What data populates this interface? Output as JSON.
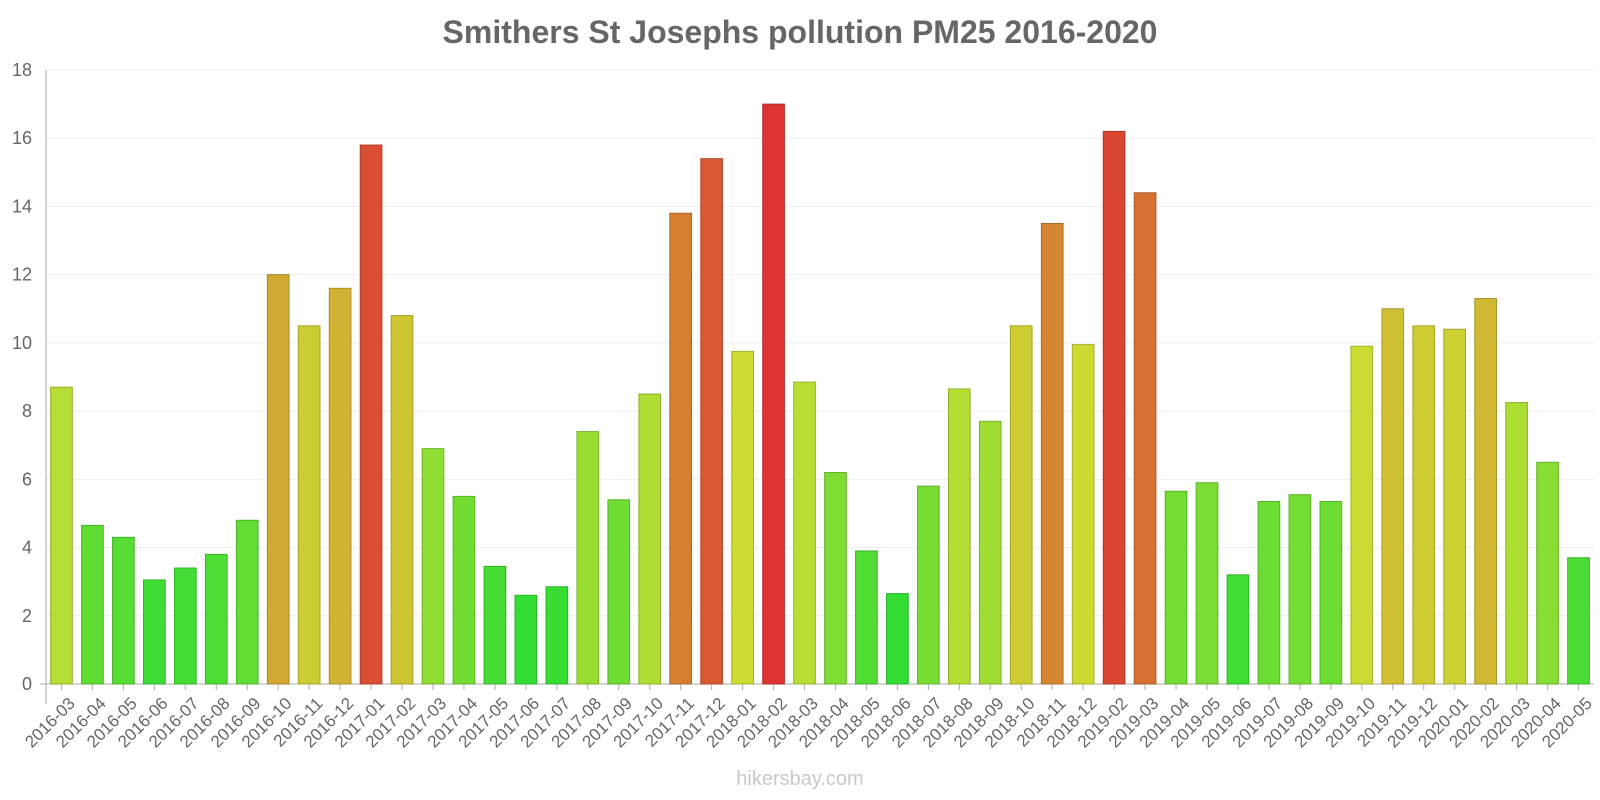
{
  "chart_data": {
    "type": "bar",
    "title": "Smithers St Josephs pollution PM25 2016-2020",
    "xlabel": "",
    "ylabel": "",
    "ylim": [
      0,
      18
    ],
    "yticks": [
      0,
      2,
      4,
      6,
      8,
      10,
      12,
      14,
      16,
      18
    ],
    "grid": true,
    "legend": "none",
    "categories": [
      "2016-03",
      "2016-04",
      "2016-05",
      "2016-06",
      "2016-07",
      "2016-08",
      "2016-09",
      "2016-10",
      "2016-11",
      "2016-12",
      "2017-01",
      "2017-02",
      "2017-03",
      "2017-04",
      "2017-05",
      "2017-06",
      "2017-07",
      "2017-08",
      "2017-09",
      "2017-10",
      "2017-11",
      "2017-12",
      "2018-01",
      "2018-02",
      "2018-03",
      "2018-04",
      "2018-05",
      "2018-06",
      "2018-07",
      "2018-08",
      "2018-09",
      "2018-10",
      "2018-11",
      "2018-12",
      "2019-02",
      "2019-03",
      "2019-04",
      "2019-05",
      "2019-06",
      "2019-07",
      "2019-08",
      "2019-09",
      "2019-10",
      "2019-11",
      "2019-12",
      "2020-01",
      "2020-02",
      "2020-03",
      "2020-04",
      "2020-05"
    ],
    "values": [
      8.7,
      4.65,
      4.3,
      3.05,
      3.4,
      3.8,
      4.8,
      12,
      10.5,
      11.6,
      15.8,
      10.8,
      6.9,
      5.5,
      3.45,
      2.6,
      2.85,
      7.4,
      5.4,
      8.5,
      13.8,
      15.4,
      9.75,
      17,
      8.85,
      6.2,
      3.9,
      2.65,
      5.8,
      8.65,
      7.7,
      10.5,
      13.5,
      9.95,
      16.2,
      14.4,
      5.65,
      5.9,
      3.2,
      5.35,
      5.55,
      5.35,
      9.9,
      11,
      10.5,
      10.4,
      11.3,
      8.25,
      6.5,
      3.7
    ],
    "color_scale": {
      "low": "#33dd33",
      "mid": "#ccdd33",
      "high": "#dd3333"
    }
  },
  "watermark": "hikersbay.com"
}
